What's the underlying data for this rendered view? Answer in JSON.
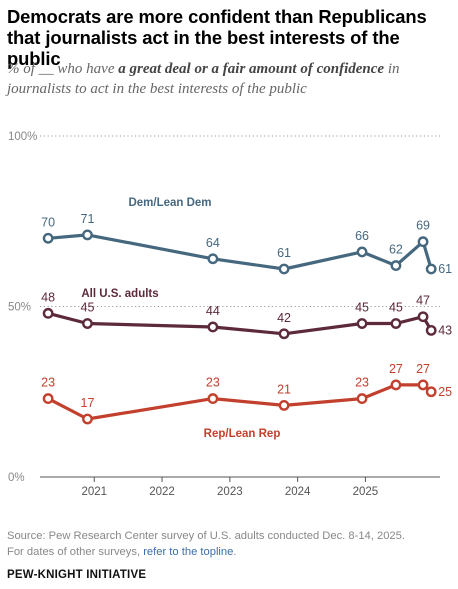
{
  "title": "Democrats are more confident than Republicans that journalists act in the best interests of the public",
  "subtitle": {
    "pre": "% of __ who have ",
    "bold": "a great deal or a fair amount of confidence",
    "post": " in journalists to act in the best interests of the public"
  },
  "source": {
    "line1": "Source: Pew Research Center survey of U.S. adults conducted Dec. 8-14, 2025.",
    "line2_pre": "For dates of other surveys, ",
    "line2_link": "refer to the topline",
    "line2_post": "."
  },
  "footer": "PEW-KNIGHT INITIATIVE",
  "chart_data": {
    "type": "line",
    "yticks": [
      {
        "value": 100,
        "label": "100%"
      },
      {
        "value": 50,
        "label": "50%"
      },
      {
        "value": 0,
        "label": "0%"
      }
    ],
    "ylim": [
      0,
      100
    ],
    "xlim": [
      2020.2,
      2026.1
    ],
    "xticks": [
      {
        "value": 2021,
        "label": "2021"
      },
      {
        "value": 2022,
        "label": "2022"
      },
      {
        "value": 2023,
        "label": "2023"
      },
      {
        "value": 2024,
        "label": "2024"
      },
      {
        "value": 2025,
        "label": "2025"
      }
    ],
    "series": [
      {
        "name": "Dem/Lean Dem",
        "color": "#46687f",
        "x": [
          2020.32,
          2020.9,
          2022.75,
          2023.8,
          2024.95,
          2025.45,
          2025.85,
          2025.97
        ],
        "y": [
          70,
          71,
          64,
          61,
          66,
          62,
          69,
          61
        ]
      },
      {
        "name": "All U.S. adults",
        "color": "#5c2a3c",
        "x": [
          2020.32,
          2020.9,
          2022.75,
          2023.8,
          2024.95,
          2025.45,
          2025.85,
          2025.97
        ],
        "y": [
          48,
          45,
          44,
          42,
          45,
          45,
          47,
          43
        ]
      },
      {
        "name": "Rep/Lean Rep",
        "color": "#c2402d",
        "x": [
          2020.32,
          2020.9,
          2022.75,
          2023.8,
          2024.95,
          2025.45,
          2025.85,
          2025.97
        ],
        "y": [
          23,
          17,
          23,
          21,
          23,
          27,
          27,
          25
        ]
      }
    ]
  }
}
